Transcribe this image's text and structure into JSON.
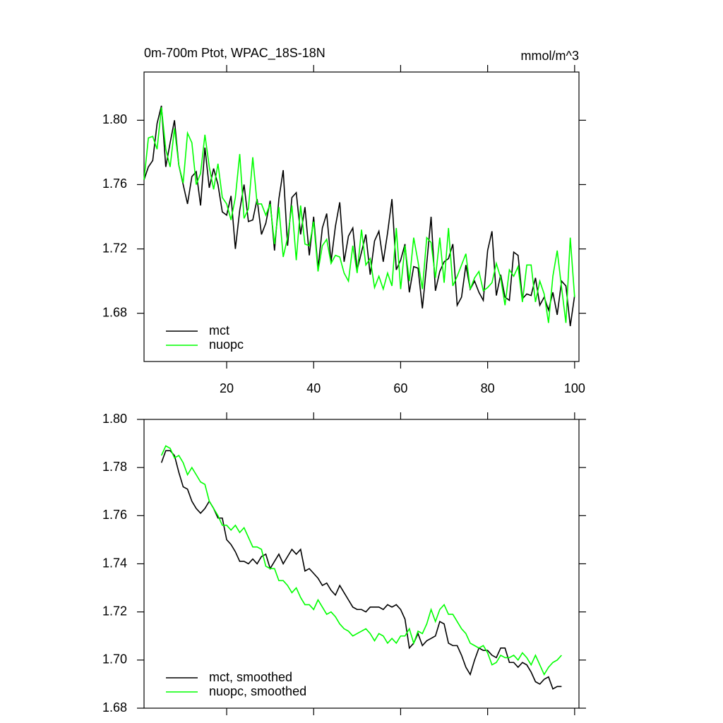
{
  "chart_data": [
    {
      "type": "line",
      "title": "0m-700m Ptot, WPAC_18S-18N",
      "units": "mmol/m^3",
      "x": [
        1,
        2,
        3,
        4,
        5,
        6,
        7,
        8,
        9,
        10,
        11,
        12,
        13,
        14,
        15,
        16,
        17,
        18,
        19,
        20,
        21,
        22,
        23,
        24,
        25,
        26,
        27,
        28,
        29,
        30,
        31,
        32,
        33,
        34,
        35,
        36,
        37,
        38,
        39,
        40,
        41,
        42,
        43,
        44,
        45,
        46,
        47,
        48,
        49,
        50,
        51,
        52,
        53,
        54,
        55,
        56,
        57,
        58,
        59,
        60,
        61,
        62,
        63,
        64,
        65,
        66,
        67,
        68,
        69,
        70,
        71,
        72,
        73,
        74,
        75,
        76,
        77,
        78,
        79,
        80,
        81,
        82,
        83,
        84,
        85,
        86,
        87,
        88,
        89,
        90,
        91,
        92,
        93,
        94,
        95,
        96,
        97,
        98,
        99,
        100
      ],
      "series": [
        {
          "name": "mct",
          "color": "#000000",
          "values": [
            1.763,
            1.771,
            1.775,
            1.798,
            1.809,
            1.771,
            1.786,
            1.8,
            1.772,
            1.76,
            1.748,
            1.765,
            1.768,
            1.747,
            1.783,
            1.758,
            1.77,
            1.76,
            1.743,
            1.741,
            1.753,
            1.72,
            1.744,
            1.76,
            1.737,
            1.738,
            1.751,
            1.729,
            1.736,
            1.75,
            1.719,
            1.751,
            1.769,
            1.722,
            1.752,
            1.755,
            1.729,
            1.746,
            1.716,
            1.74,
            1.708,
            1.733,
            1.742,
            1.712,
            1.734,
            1.749,
            1.712,
            1.728,
            1.733,
            1.707,
            1.718,
            1.729,
            1.704,
            1.725,
            1.731,
            1.712,
            1.73,
            1.751,
            1.707,
            1.713,
            1.723,
            1.693,
            1.709,
            1.708,
            1.683,
            1.711,
            1.74,
            1.694,
            1.706,
            1.712,
            1.714,
            1.723,
            1.685,
            1.69,
            1.71,
            1.695,
            1.7,
            1.693,
            1.688,
            1.719,
            1.731,
            1.691,
            1.704,
            1.69,
            1.688,
            1.718,
            1.716,
            1.689,
            1.692,
            1.691,
            1.702,
            1.685,
            1.69,
            1.682,
            1.693,
            1.679,
            1.7,
            1.697,
            1.672,
            1.691
          ]
        },
        {
          "name": "nuopc",
          "color": "#00ff00",
          "values": [
            1.763,
            1.789,
            1.79,
            1.782,
            1.808,
            1.782,
            1.771,
            1.795,
            1.772,
            1.761,
            1.792,
            1.786,
            1.76,
            1.767,
            1.791,
            1.771,
            1.757,
            1.773,
            1.752,
            1.748,
            1.738,
            1.752,
            1.779,
            1.739,
            1.745,
            1.777,
            1.748,
            1.748,
            1.741,
            1.748,
            1.723,
            1.746,
            1.715,
            1.727,
            1.747,
            1.713,
            1.747,
            1.723,
            1.722,
            1.737,
            1.706,
            1.722,
            1.726,
            1.711,
            1.716,
            1.715,
            1.705,
            1.7,
            1.722,
            1.705,
            1.732,
            1.71,
            1.714,
            1.696,
            1.703,
            1.695,
            1.705,
            1.697,
            1.733,
            1.695,
            1.722,
            1.7,
            1.727,
            1.712,
            1.695,
            1.727,
            1.724,
            1.702,
            1.727,
            1.699,
            1.733,
            1.697,
            1.703,
            1.71,
            1.717,
            1.695,
            1.702,
            1.706,
            1.694,
            1.696,
            1.699,
            1.711,
            1.702,
            1.685,
            1.707,
            1.703,
            1.709,
            1.687,
            1.71,
            1.71,
            1.687,
            1.7,
            1.692,
            1.674,
            1.703,
            1.719,
            1.696,
            1.674,
            1.727,
            1.69
          ]
        }
      ],
      "xlim": [
        1,
        101
      ],
      "xticks": [
        20,
        40,
        60,
        80,
        100
      ],
      "ylim": [
        1.65,
        1.83
      ],
      "yticks": [
        {
          "value": 1.68,
          "label": "1.68"
        },
        {
          "value": 1.72,
          "label": "1.72"
        },
        {
          "value": 1.76,
          "label": "1.76"
        },
        {
          "value": 1.8,
          "label": "1.80"
        }
      ],
      "xtick_labels": true,
      "legend": "lower left"
    },
    {
      "type": "line",
      "x": [
        5,
        6,
        7,
        8,
        9,
        10,
        11,
        12,
        13,
        14,
        15,
        16,
        17,
        18,
        19,
        20,
        21,
        22,
        23,
        24,
        25,
        26,
        27,
        28,
        29,
        30,
        31,
        32,
        33,
        34,
        35,
        36,
        37,
        38,
        39,
        40,
        41,
        42,
        43,
        44,
        45,
        46,
        47,
        48,
        49,
        50,
        51,
        52,
        53,
        54,
        55,
        56,
        57,
        58,
        59,
        60,
        61,
        62,
        63,
        64,
        65,
        66,
        67,
        68,
        69,
        70,
        71,
        72,
        73,
        74,
        75,
        76,
        77,
        78,
        79,
        80,
        81,
        82,
        83,
        84,
        85,
        86,
        87,
        88,
        89,
        90,
        91,
        92,
        93,
        94,
        95,
        96,
        97
      ],
      "series": [
        {
          "name": "mct, smoothed",
          "color": "#000000",
          "values": [
            1.782,
            1.787,
            1.787,
            1.785,
            1.778,
            1.772,
            1.771,
            1.766,
            1.763,
            1.761,
            1.763,
            1.766,
            1.763,
            1.759,
            1.759,
            1.75,
            1.748,
            1.745,
            1.741,
            1.741,
            1.74,
            1.742,
            1.74,
            1.743,
            1.744,
            1.738,
            1.741,
            1.744,
            1.74,
            1.743,
            1.746,
            1.744,
            1.746,
            1.737,
            1.738,
            1.736,
            1.734,
            1.731,
            1.732,
            1.729,
            1.727,
            1.731,
            1.728,
            1.725,
            1.722,
            1.721,
            1.721,
            1.72,
            1.722,
            1.722,
            1.722,
            1.721,
            1.723,
            1.722,
            1.723,
            1.721,
            1.717,
            1.705,
            1.707,
            1.711,
            1.706,
            1.708,
            1.709,
            1.71,
            1.716,
            1.715,
            1.707,
            1.706,
            1.706,
            1.702,
            1.697,
            1.694,
            1.7,
            1.705,
            1.704,
            1.704,
            1.702,
            1.701,
            1.705,
            1.705,
            1.699,
            1.699,
            1.697,
            1.699,
            1.698,
            1.695,
            1.691,
            1.69,
            1.692,
            1.693,
            1.688,
            1.689,
            1.689
          ]
        },
        {
          "name": "nuopc, smoothed",
          "color": "#00ff00",
          "values": [
            1.785,
            1.789,
            1.788,
            1.784,
            1.785,
            1.782,
            1.777,
            1.78,
            1.777,
            1.774,
            1.773,
            1.766,
            1.763,
            1.76,
            1.756,
            1.756,
            1.754,
            1.756,
            1.753,
            1.755,
            1.751,
            1.747,
            1.747,
            1.746,
            1.739,
            1.738,
            1.738,
            1.733,
            1.733,
            1.731,
            1.728,
            1.73,
            1.726,
            1.723,
            1.723,
            1.721,
            1.725,
            1.722,
            1.719,
            1.72,
            1.718,
            1.715,
            1.713,
            1.712,
            1.71,
            1.711,
            1.712,
            1.713,
            1.711,
            1.708,
            1.711,
            1.71,
            1.707,
            1.709,
            1.707,
            1.71,
            1.71,
            1.713,
            1.707,
            1.712,
            1.711,
            1.715,
            1.721,
            1.716,
            1.721,
            1.723,
            1.719,
            1.719,
            1.716,
            1.713,
            1.711,
            1.707,
            1.706,
            1.705,
            1.706,
            1.703,
            1.698,
            1.699,
            1.702,
            1.701,
            1.701,
            1.702,
            1.7,
            1.703,
            1.701,
            1.698,
            1.702,
            1.698,
            1.694,
            1.697,
            1.699,
            1.7,
            1.702
          ]
        }
      ],
      "xlim": [
        1,
        101
      ],
      "xticks": [
        20,
        40,
        60,
        80,
        100
      ],
      "ylim": [
        1.68,
        1.8
      ],
      "yticks": [
        {
          "value": 1.68,
          "label": "1.68"
        },
        {
          "value": 1.7,
          "label": "1.70"
        },
        {
          "value": 1.72,
          "label": "1.72"
        },
        {
          "value": 1.74,
          "label": "1.74"
        },
        {
          "value": 1.76,
          "label": "1.76"
        },
        {
          "value": 1.78,
          "label": "1.78"
        },
        {
          "value": 1.8,
          "label": "1.80"
        }
      ],
      "xtick_labels": false,
      "legend": "lower left"
    }
  ]
}
